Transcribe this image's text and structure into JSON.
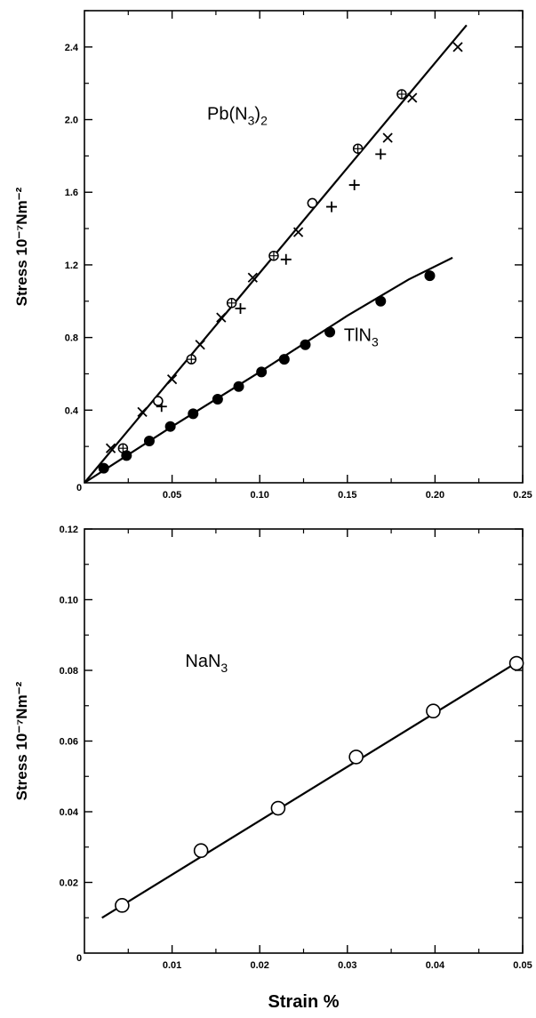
{
  "chart_data": [
    {
      "type": "scatter",
      "xlabel": "",
      "ylabel": "Stress  10⁻⁷Nm⁻²",
      "xlim": [
        0,
        0.25
      ],
      "ylim": [
        0,
        2.6
      ],
      "x_ticks": [
        "0.05",
        "0.10",
        "0.15",
        "0.20",
        "0.25"
      ],
      "y_ticks": [
        "0.4",
        "0.8",
        "1.2",
        "1.6",
        "2.0",
        "2.4"
      ],
      "origin_label": "0",
      "annotations": [
        {
          "main": "Pb(N",
          "sub": "3",
          "post": ")",
          "sub2": "2",
          "x": 0.07,
          "y": 2.0
        },
        {
          "main": "TlN",
          "sub": "3",
          "post": "",
          "sub2": "",
          "x": 0.148,
          "y": 0.78
        }
      ],
      "series": [
        {
          "marker": "x",
          "x": [
            0.015,
            0.033,
            0.05,
            0.066,
            0.078,
            0.096,
            0.122,
            0.173,
            0.187,
            0.213
          ],
          "y": [
            0.19,
            0.39,
            0.57,
            0.76,
            0.91,
            1.13,
            1.38,
            1.9,
            2.12,
            2.4
          ]
        },
        {
          "marker": "plus",
          "x": [
            0.044,
            0.089,
            0.115,
            0.141,
            0.154,
            0.169
          ],
          "y": [
            0.42,
            0.96,
            1.23,
            1.52,
            1.64,
            1.81
          ]
        },
        {
          "marker": "circle-open",
          "x": [
            0.042,
            0.13
          ],
          "y": [
            0.45,
            1.54
          ]
        },
        {
          "marker": "circle-cross",
          "x": [
            0.022,
            0.061,
            0.084,
            0.108,
            0.156,
            0.181
          ],
          "y": [
            0.19,
            0.68,
            0.99,
            1.25,
            1.84,
            2.14
          ]
        },
        {
          "marker": "circle-filled",
          "x": [
            0.011,
            0.024,
            0.037,
            0.049,
            0.062,
            0.076,
            0.088,
            0.101,
            0.114,
            0.126,
            0.14,
            0.169,
            0.197
          ],
          "y": [
            0.08,
            0.15,
            0.23,
            0.31,
            0.38,
            0.46,
            0.53,
            0.61,
            0.68,
            0.76,
            0.83,
            1.0,
            1.14
          ]
        }
      ],
      "fit_lines": [
        {
          "x": [
            0.0,
            0.218
          ],
          "y": [
            0.0,
            2.52
          ]
        },
        {
          "x": [
            0.0,
            0.05,
            0.1,
            0.15,
            0.185,
            0.21
          ],
          "y": [
            0.0,
            0.31,
            0.61,
            0.92,
            1.12,
            1.24
          ]
        }
      ]
    },
    {
      "type": "line",
      "xlabel": "Strain %",
      "ylabel": "Stress  10⁻⁷Nm⁻²",
      "xlim": [
        0,
        0.05
      ],
      "ylim": [
        0,
        0.12
      ],
      "x_ticks": [
        "0.01",
        "0.02",
        "0.03",
        "0.04",
        "0.05"
      ],
      "y_ticks": [
        "0.02",
        "0.04",
        "0.06",
        "0.08",
        "0.10",
        "0.12"
      ],
      "origin_label": "0",
      "annotations": [
        {
          "main": "NaN",
          "sub": "3",
          "post": "",
          "sub2": "",
          "x": 0.0115,
          "y": 0.081
        }
      ],
      "series": [
        {
          "marker": "circle-open",
          "x": [
            0.0043,
            0.0133,
            0.0221,
            0.031,
            0.0398,
            0.0493
          ],
          "y": [
            0.0135,
            0.029,
            0.041,
            0.0555,
            0.0685,
            0.082
          ]
        }
      ],
      "fit_lines": [
        {
          "x": [
            0.002,
            0.0493
          ],
          "y": [
            0.01,
            0.0822
          ]
        }
      ]
    }
  ]
}
